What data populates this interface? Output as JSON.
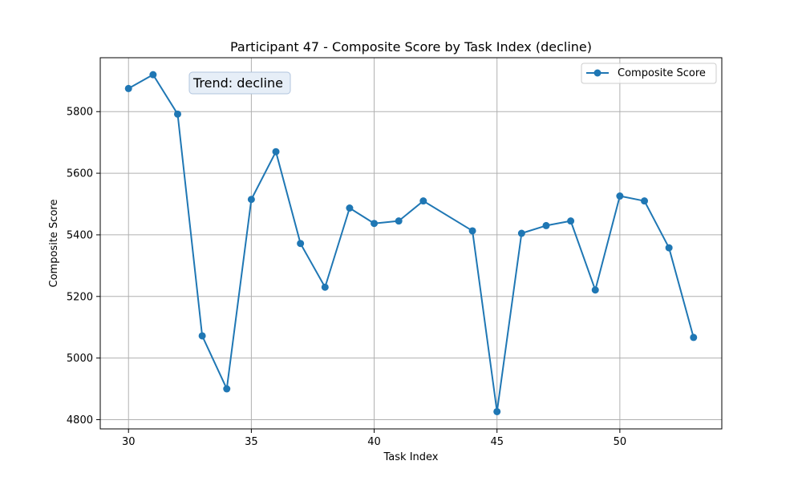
{
  "chart_data": {
    "type": "line",
    "title": "Participant 47 - Composite Score by Task Index (decline)",
    "xlabel": "Task Index",
    "ylabel": "Composite Score",
    "xlim": [
      28.85,
      54.15
    ],
    "ylim": [
      4770,
      5975
    ],
    "xticks": [
      30,
      35,
      40,
      45,
      50
    ],
    "yticks": [
      4800,
      5000,
      5200,
      5400,
      5600,
      5800
    ],
    "grid": true,
    "legend_position": "top-right",
    "annotation": "Trend: decline",
    "colors": {
      "series": "#1f77b4",
      "annotation_bg": "#e6eef7",
      "annotation_border": "#b0c4de"
    },
    "series": [
      {
        "name": "Composite Score",
        "x": [
          30,
          31,
          32,
          33,
          34,
          35,
          36,
          37,
          38,
          39,
          40,
          41,
          42,
          44,
          45,
          46,
          47,
          48,
          49,
          50,
          51,
          52,
          53
        ],
        "y": [
          5875,
          5920,
          5792,
          5072,
          4900,
          5515,
          5670,
          5372,
          5230,
          5487,
          5437,
          5445,
          5510,
          5413,
          4826,
          5405,
          5430,
          5445,
          5221,
          5526,
          5510,
          5358,
          5067
        ]
      }
    ]
  }
}
